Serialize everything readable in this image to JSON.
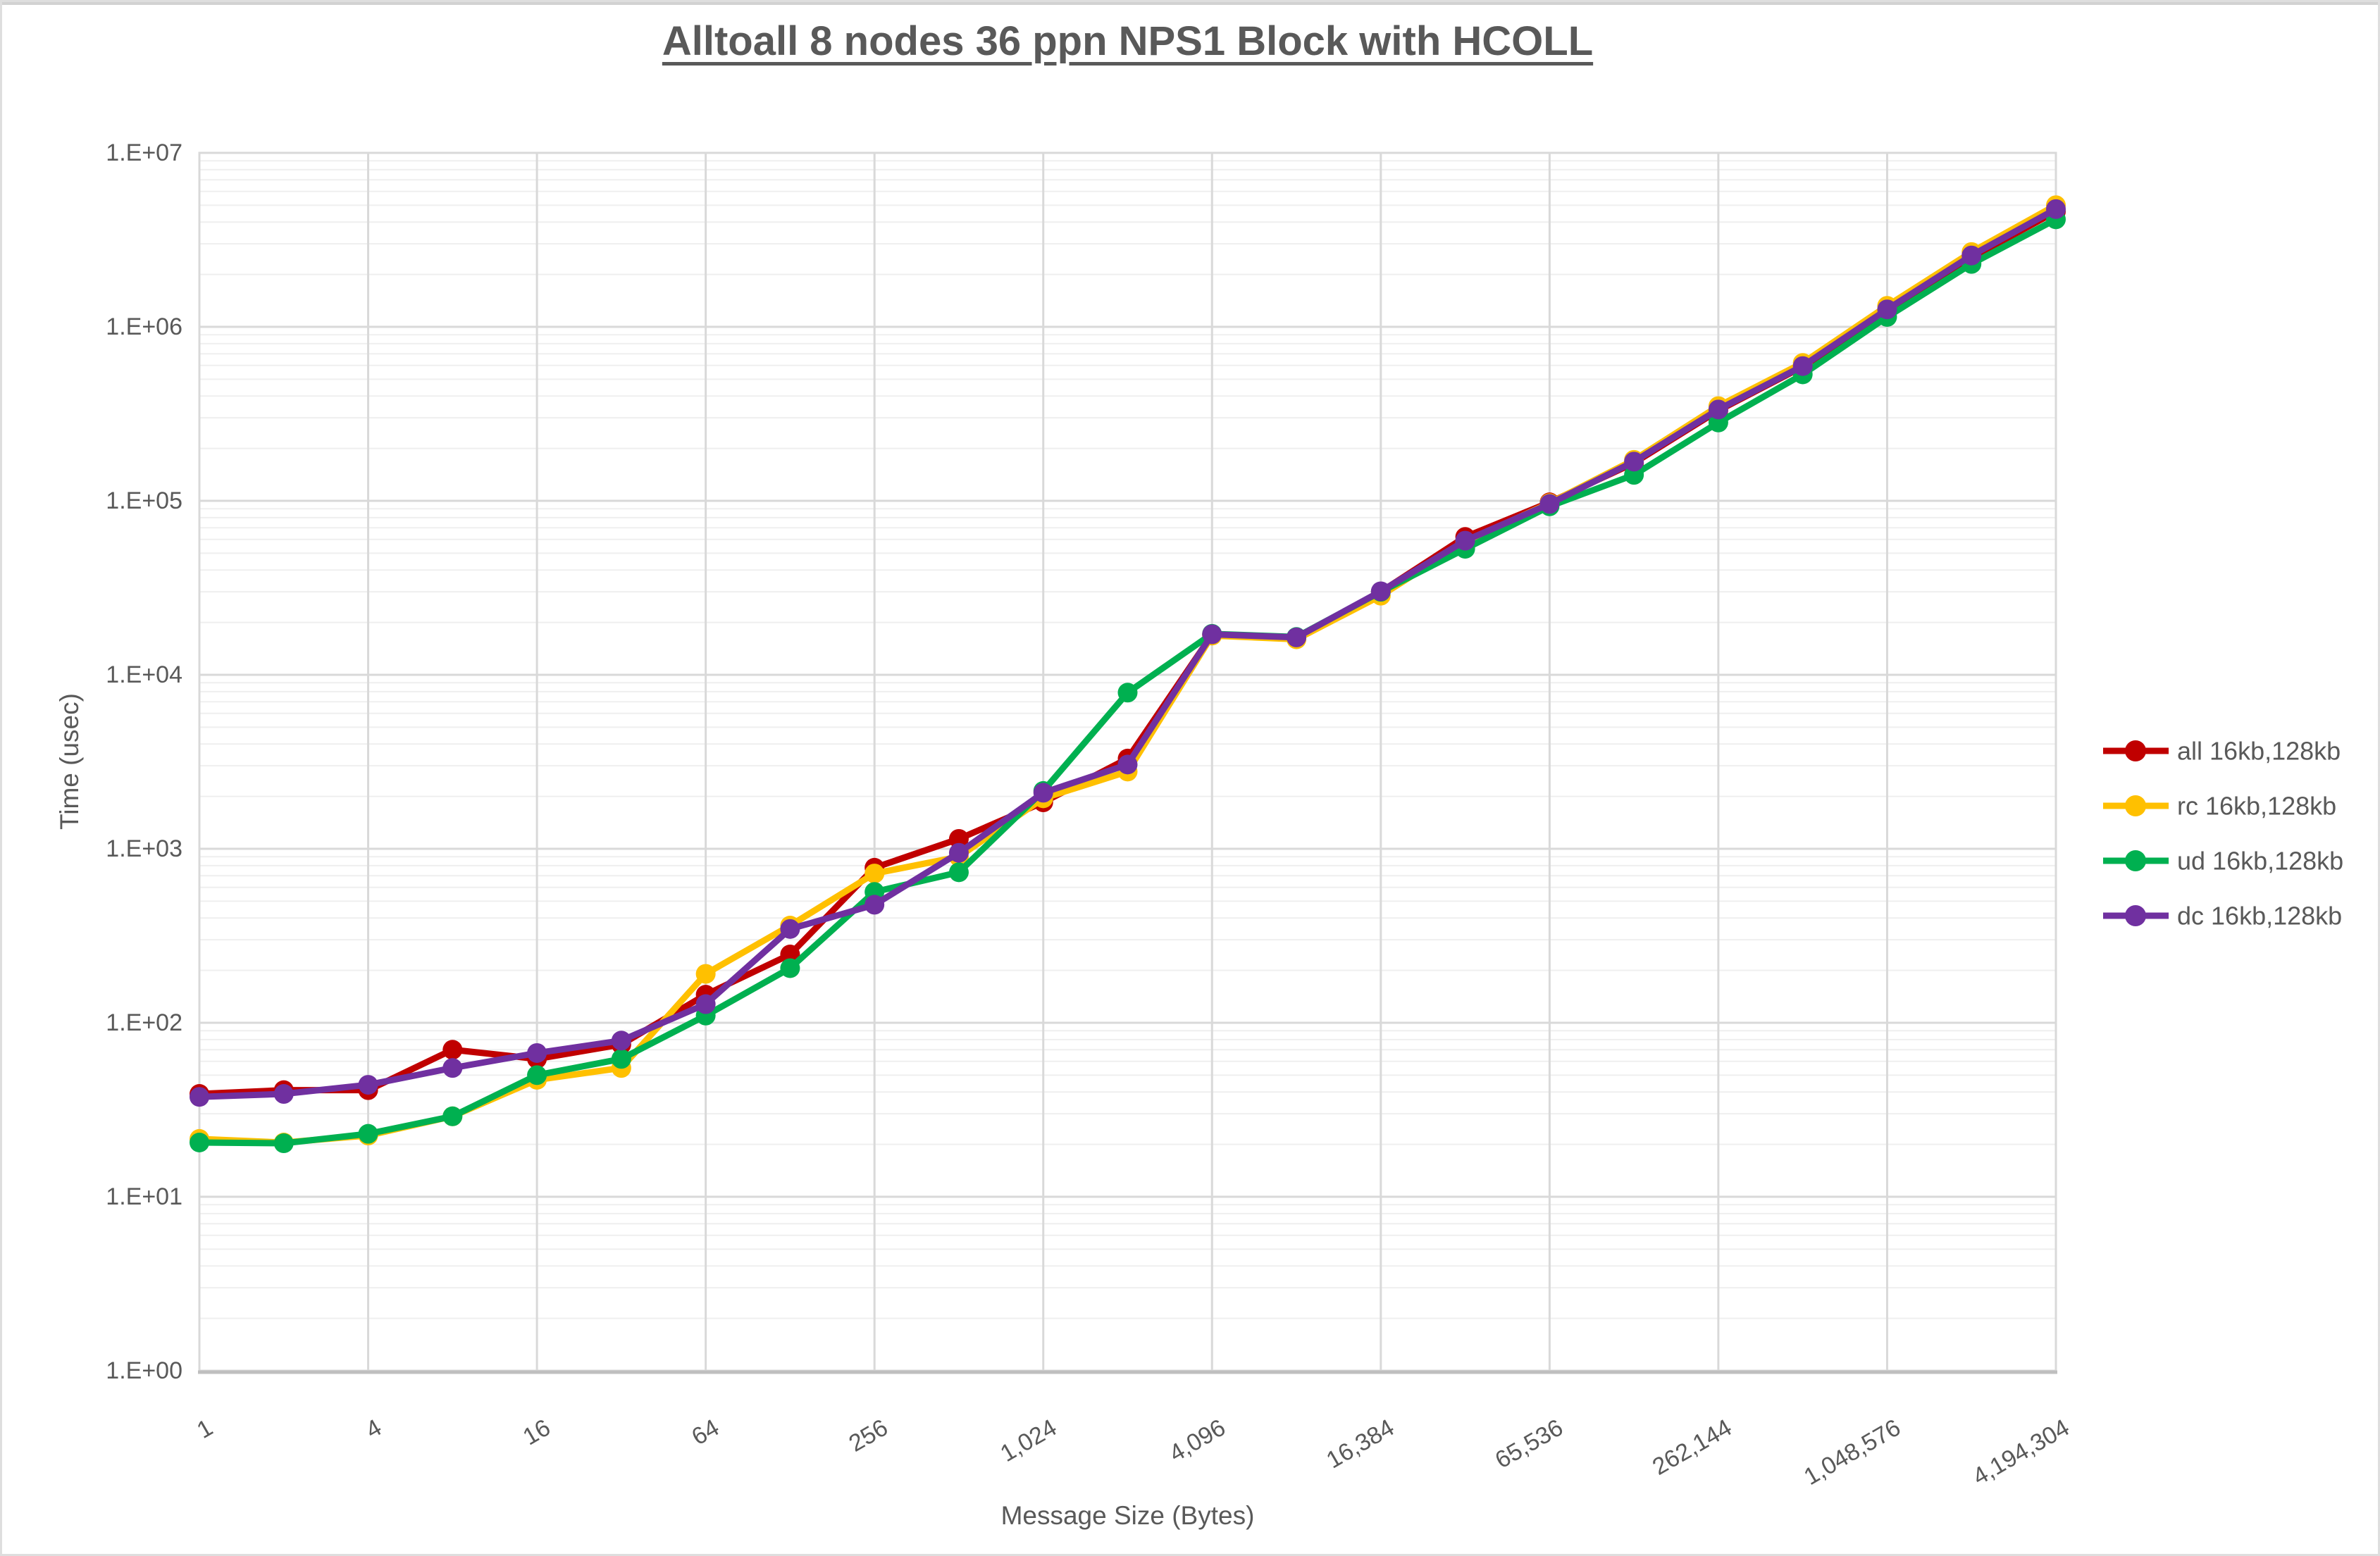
{
  "page": {
    "title": "Alltoall 8 nodes 36 ppn NPS1 Block with HCOLL"
  },
  "chart_data": {
    "type": "line",
    "title": "Alltoall 8 nodes 36 ppn NPS1 Block with HCOLL",
    "xlabel": "Message Size (Bytes)",
    "ylabel": "Time (usec)",
    "x_scale": "log2",
    "y_scale": "log10",
    "ylim": [
      1,
      10000000
    ],
    "xlim": [
      1,
      4194304
    ],
    "grid": {
      "major_y": true,
      "minor_y": true,
      "major_x": true
    },
    "legend_position": "right",
    "y_tick_labels": [
      "1.E+00",
      "1.E+01",
      "1.E+02",
      "1.E+03",
      "1.E+04",
      "1.E+05",
      "1.E+06",
      "1.E+07"
    ],
    "x_tick_labels": [
      "1",
      "4",
      "16",
      "64",
      "256",
      "1,024",
      "4,096",
      "16,384",
      "65,536",
      "262,144",
      "1,048,576",
      "4,194,304"
    ],
    "x": [
      1,
      2,
      4,
      8,
      16,
      32,
      64,
      128,
      256,
      512,
      1024,
      2048,
      4096,
      8192,
      16384,
      32768,
      65536,
      131072,
      262144,
      524288,
      1048576,
      2097152,
      4194304
    ],
    "series": [
      {
        "name": "all 16kb,128kb",
        "color": "#C00000",
        "values": [
          39,
          41,
          41,
          70,
          62,
          75,
          145,
          247,
          778,
          1140,
          1850,
          3300,
          17000,
          16200,
          30000,
          62000,
          98000,
          165000,
          330000,
          590000,
          1240000,
          2500000,
          4600000
        ]
      },
      {
        "name": "rc 16kb,128kb",
        "color": "#FFC000",
        "values": [
          21.5,
          20.5,
          22.5,
          29,
          47,
          55,
          191,
          362,
          721,
          900,
          1950,
          2780,
          16800,
          16000,
          28500,
          58000,
          97000,
          172000,
          350000,
          620000,
          1320000,
          2690000,
          5000000
        ]
      },
      {
        "name": "ud 16kb,128kb",
        "color": "#00B050",
        "values": [
          20.5,
          20.3,
          23,
          29,
          50,
          62,
          110,
          206,
          565,
          733,
          2150,
          7900,
          17200,
          16500,
          30000,
          53000,
          93000,
          141000,
          282000,
          533000,
          1140000,
          2300000,
          4150000
        ]
      },
      {
        "name": "dc 16kb,128kb",
        "color": "#7030A0",
        "values": [
          37.5,
          39,
          44,
          55,
          67,
          79,
          128,
          346,
          477,
          948,
          2100,
          3050,
          17100,
          16400,
          30200,
          59000,
          96000,
          168000,
          335000,
          595000,
          1260000,
          2570000,
          4750000
        ]
      }
    ]
  }
}
